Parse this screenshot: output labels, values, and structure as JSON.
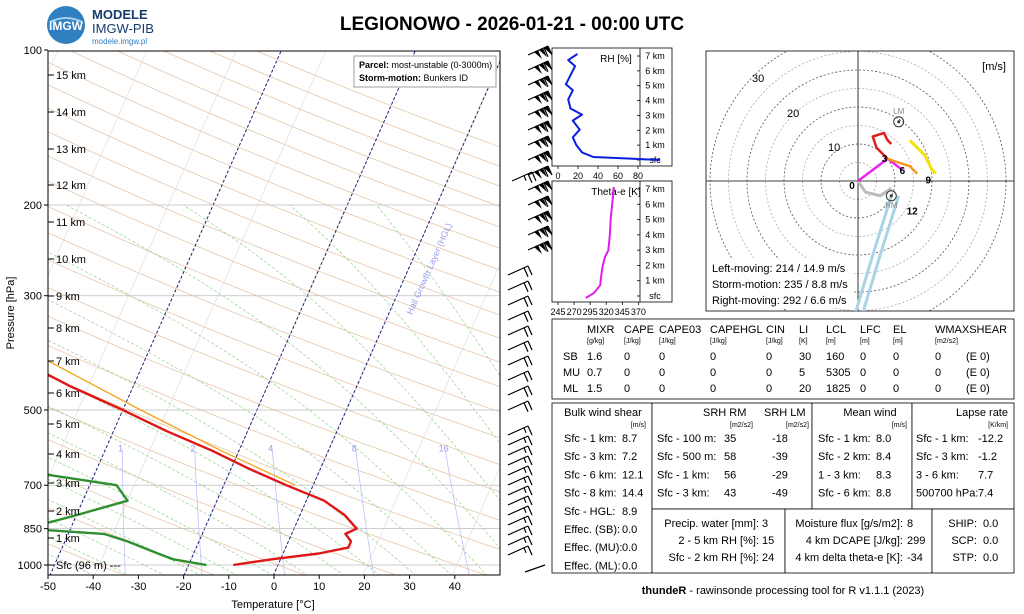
{
  "header": {
    "logo_text": "IMGW",
    "brand_line1": "MODELE",
    "brand_line2": "IMGW-PIB",
    "brand_url": "modele.imgw.pl",
    "title": "LEGIONOWO - 2026-01-21 - 00:00 UTC"
  },
  "skewt": {
    "ylabel": "Pressure [hPa]",
    "xlabel": "Temperature [°C]",
    "pressure_ticks": [
      "100",
      "200",
      "300",
      "500",
      "700",
      "850",
      "1000"
    ],
    "temp_ticks": [
      "-50",
      "-40",
      "-30",
      "-20",
      "-10",
      "0",
      "10",
      "20",
      "30",
      "40"
    ],
    "height_labels": [
      "15 km",
      "14 km",
      "13 km",
      "12 km",
      "11 km",
      "10 km",
      "9 km",
      "8 km",
      "7 km",
      "6 km",
      "5 km",
      "4 km",
      "3 km",
      "2 km",
      "1 km",
      "Sfc (96 m) ---"
    ],
    "parcel_label": "Parcel:",
    "parcel_value": "most-unstable (0-3000m)",
    "storm_label": "Storm-motion:",
    "storm_value": "Bunkers ID",
    "hgl_label": "Hail Growth Layer (HGL)",
    "mixr_labels": [
      "1",
      "2",
      "4",
      "8",
      "16"
    ]
  },
  "rh_panel": {
    "title": "RH [%]",
    "x_ticks": [
      "0",
      "20",
      "40",
      "60",
      "80"
    ],
    "levels": [
      "7 km",
      "6 km",
      "5 km",
      "4 km",
      "3 km",
      "2 km",
      "1 km",
      "sfc"
    ]
  },
  "theta_panel": {
    "title": "Theta-e [K]",
    "x_ticks": [
      "245",
      "270",
      "295",
      "320",
      "345",
      "370"
    ],
    "levels": [
      "7 km",
      "6 km",
      "5 km",
      "4 km",
      "3 km",
      "2 km",
      "1 km",
      "sfc"
    ]
  },
  "hodograph": {
    "unit": "[m/s]",
    "ring_labels": [
      "10",
      "20",
      "30"
    ],
    "lm_label": "LM",
    "rm_label": "RM",
    "height_marks": [
      "0",
      "3",
      "6",
      "9",
      "12"
    ],
    "left_moving": "Left-moving: 214 / 14.9 m/s",
    "storm_motion": "Storm-motion: 235 / 8.8 m/s",
    "right_moving": "Right-moving: 292 / 6.6 m/s"
  },
  "params": {
    "headers": [
      "MIXR",
      "CAPE",
      "CAPE03",
      "CAPEHGL",
      "CIN",
      "LI",
      "LCL",
      "LFC",
      "EL",
      "WMAXSHEAR"
    ],
    "units": [
      "[g/kg]",
      "[J/kg]",
      "[J/kg]",
      "[J/kg]",
      "[J/kg]",
      "[K]",
      "[m]",
      "[m]",
      "[m]",
      "[m2/s2]"
    ],
    "rows": [
      {
        "name": "SB",
        "values": [
          "1.6",
          "0",
          "0",
          "0",
          "0",
          "30",
          "160",
          "0",
          "0",
          "0",
          "(E 0)"
        ]
      },
      {
        "name": "MU",
        "values": [
          "0.7",
          "0",
          "0",
          "0",
          "0",
          "5",
          "5305",
          "0",
          "0",
          "0",
          "(E 0)"
        ]
      },
      {
        "name": "ML",
        "values": [
          "1.5",
          "0",
          "0",
          "0",
          "0",
          "20",
          "1825",
          "0",
          "0",
          "0",
          "(E 0)"
        ]
      }
    ]
  },
  "shear": {
    "title": "Bulk wind shear",
    "unit": "[m/s]",
    "rows": [
      [
        "Sfc - 1 km:",
        "8.7"
      ],
      [
        "Sfc - 3 km:",
        "7.2"
      ],
      [
        "Sfc - 6 km:",
        "12.1"
      ],
      [
        "Sfc - 8 km:",
        "14.4"
      ],
      [
        "Sfc - HGL:",
        "8.9"
      ],
      [
        "Effec. (SB):",
        "0.0"
      ],
      [
        "Effec. (MU):",
        "0.0"
      ],
      [
        "Effec. (ML):",
        "0.0"
      ]
    ]
  },
  "srh": {
    "h_rm": "SRH RM",
    "h_lm": "SRH LM",
    "u_rm": "[m2/s2]",
    "u_lm": "[m2/s2]",
    "rows": [
      [
        "Sfc - 100 m:",
        "35",
        "-18"
      ],
      [
        "Sfc - 500 m:",
        "58",
        "-39"
      ],
      [
        "Sfc - 1 km:",
        "56",
        "-29"
      ],
      [
        "Sfc - 3 km:",
        "43",
        "-49"
      ]
    ]
  },
  "meanwind": {
    "title": "Mean wind",
    "unit": "[m/s]",
    "rows": [
      [
        "Sfc - 1 km:",
        "8.0"
      ],
      [
        "Sfc - 2 km:",
        "8.4"
      ],
      [
        "1 - 3 km:",
        "8.3"
      ],
      [
        "Sfc - 6 km:",
        "8.8"
      ]
    ]
  },
  "lapse": {
    "title": "Lapse rate",
    "unit": "[K/km]",
    "rows": [
      [
        "Sfc - 1 km:",
        "-12.2"
      ],
      [
        "Sfc - 3 km:",
        "-1.2"
      ],
      [
        "3 - 6 km:",
        "7.7"
      ],
      [
        "500700 hPa:",
        "7.4"
      ]
    ]
  },
  "moisture": {
    "rows": [
      [
        "Precip. water [mm]:",
        "3"
      ],
      [
        "2 - 5 km RH [%]:",
        "15"
      ],
      [
        "Sfc - 2 km RH [%]:",
        "24"
      ]
    ]
  },
  "flux": {
    "rows": [
      [
        "Moisture flux [g/s/m2]:",
        "8"
      ],
      [
        "4 km DCAPE [J/kg]:",
        "299"
      ],
      [
        "4 km delta theta-e [K]:",
        "-34"
      ]
    ]
  },
  "composite": {
    "rows": [
      [
        "SHIP:",
        "0.0"
      ],
      [
        "SCP:",
        "0.0"
      ],
      [
        "STP:",
        "0.0"
      ]
    ]
  },
  "footer": {
    "bold": "thundeR",
    "rest": " - rawinsonde processing tool for R v1.1.1 (2023)"
  }
}
